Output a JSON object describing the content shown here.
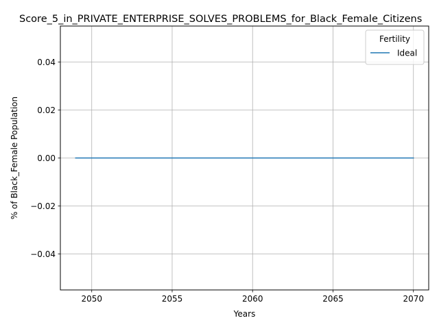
{
  "chart_data": {
    "type": "line",
    "title": "Score_5_in_PRIVATE_ENTERPRISE_SOLVES_PROBLEMS_for_Black_Female_Citizens",
    "xlabel": "Years",
    "ylabel": "% of Black_Female Population",
    "xlim": [
      2048.05,
      2070.95
    ],
    "ylim": [
      -0.055,
      0.055
    ],
    "xticks": [
      2050,
      2055,
      2060,
      2065,
      2070
    ],
    "xtick_labels": [
      "2050",
      "2055",
      "2060",
      "2065",
      "2070"
    ],
    "yticks": [
      -0.04,
      -0.02,
      0.0,
      0.02,
      0.04
    ],
    "ytick_labels": [
      "−0.04",
      "−0.02",
      "0.00",
      "0.02",
      "0.04"
    ],
    "grid": true,
    "legend": {
      "title": "Fertility",
      "placement": "top-right"
    },
    "series": [
      {
        "name": "Ideal",
        "color": "#1f77b4",
        "x": [
          2049,
          2050,
          2051,
          2052,
          2053,
          2054,
          2055,
          2056,
          2057,
          2058,
          2059,
          2060,
          2061,
          2062,
          2063,
          2064,
          2065,
          2066,
          2067,
          2068,
          2069,
          2070
        ],
        "y": [
          0,
          0,
          0,
          0,
          0,
          0,
          0,
          0,
          0,
          0,
          0,
          0,
          0,
          0,
          0,
          0,
          0,
          0,
          0,
          0,
          0,
          0
        ]
      }
    ]
  }
}
